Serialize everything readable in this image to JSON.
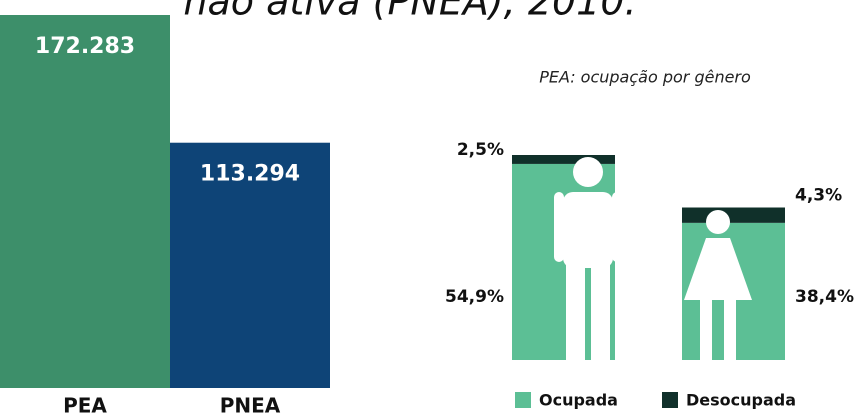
{
  "chart_data": [
    {
      "type": "bar",
      "title": "não ativa (PNEA), 2010.",
      "categories": [
        "PEA",
        "PNEA"
      ],
      "values": [
        172283,
        113294
      ],
      "value_labels": [
        "172.283",
        "113.294"
      ],
      "colors": [
        "#3d8f6a",
        "#0e4477"
      ]
    },
    {
      "type": "stacked_bar",
      "title": "PEA: ocupação por gênero",
      "categories": [
        null,
        null
      ],
      "series": [
        {
          "name": "Ocupada",
          "color": "#5cbf95",
          "values": [
            54.9,
            38.4
          ],
          "value_labels": [
            "54,9%",
            "38,4%"
          ]
        },
        {
          "name": "Desocupada",
          "color": "#10302a",
          "values": [
            2.5,
            4.3
          ],
          "value_labels": [
            "2,5%",
            "4,3%"
          ]
        }
      ]
    }
  ]
}
